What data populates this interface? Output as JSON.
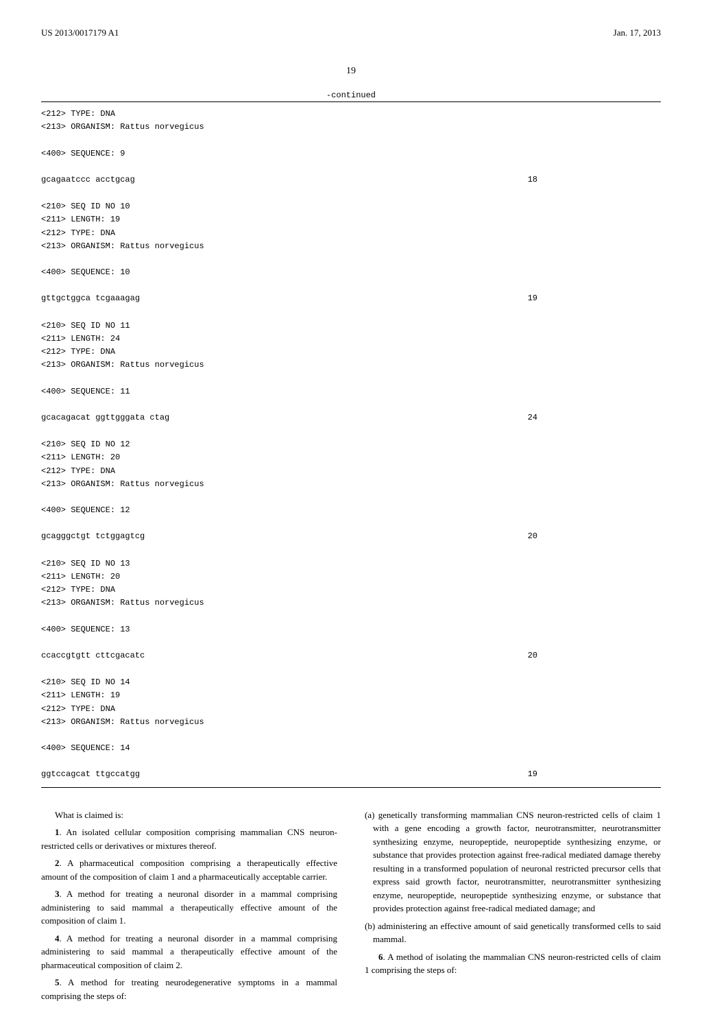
{
  "header": {
    "pub_number": "US 2013/0017179 A1",
    "pub_date": "Jan. 17, 2013"
  },
  "page_number": "19",
  "continued_label": "-continued",
  "sequences": [
    {
      "meta": [
        "<212> TYPE: DNA",
        "<213> ORGANISM: Rattus norvegicus"
      ],
      "seq_label": "<400> SEQUENCE: 9",
      "seq_data": "gcagaatccc acctgcag",
      "seq_len": "18"
    },
    {
      "meta": [
        "<210> SEQ ID NO 10",
        "<211> LENGTH: 19",
        "<212> TYPE: DNA",
        "<213> ORGANISM: Rattus norvegicus"
      ],
      "seq_label": "<400> SEQUENCE: 10",
      "seq_data": "gttgctggca tcgaaagag",
      "seq_len": "19"
    },
    {
      "meta": [
        "<210> SEQ ID NO 11",
        "<211> LENGTH: 24",
        "<212> TYPE: DNA",
        "<213> ORGANISM: Rattus norvegicus"
      ],
      "seq_label": "<400> SEQUENCE: 11",
      "seq_data": "gcacagacat ggttgggata ctag",
      "seq_len": "24"
    },
    {
      "meta": [
        "<210> SEQ ID NO 12",
        "<211> LENGTH: 20",
        "<212> TYPE: DNA",
        "<213> ORGANISM: Rattus norvegicus"
      ],
      "seq_label": "<400> SEQUENCE: 12",
      "seq_data": "gcagggctgt tctggagtcg",
      "seq_len": "20"
    },
    {
      "meta": [
        "<210> SEQ ID NO 13",
        "<211> LENGTH: 20",
        "<212> TYPE: DNA",
        "<213> ORGANISM: Rattus norvegicus"
      ],
      "seq_label": "<400> SEQUENCE: 13",
      "seq_data": "ccaccgtgtt cttcgacatc",
      "seq_len": "20"
    },
    {
      "meta": [
        "<210> SEQ ID NO 14",
        "<211> LENGTH: 19",
        "<212> TYPE: DNA",
        "<213> ORGANISM: Rattus norvegicus"
      ],
      "seq_label": "<400> SEQUENCE: 14",
      "seq_data": "ggtccagcat ttgccatgg",
      "seq_len": "19"
    }
  ],
  "claims": {
    "intro": "What is claimed is:",
    "left_col": [
      {
        "num": "1",
        "text": ". An isolated cellular composition comprising mammalian CNS neuron-restricted cells or derivatives or mixtures thereof."
      },
      {
        "num": "2",
        "text": ". A pharmaceutical composition comprising a therapeutically effective amount of the composition of claim 1 and a pharmaceutically acceptable carrier."
      },
      {
        "num": "3",
        "text": ". A method for treating a neuronal disorder in a mammal comprising administering to said mammal a therapeutically effective amount of the composition of claim 1."
      },
      {
        "num": "4",
        "text": ". A method for treating a neuronal disorder in a mammal comprising administering to said mammal a therapeutically effective amount of the pharmaceutical composition of claim 2."
      },
      {
        "num": "5",
        "text": ". A method for treating neurodegenerative symptoms in a mammal comprising the steps of:"
      }
    ],
    "right_col_items": [
      {
        "label": "(a)",
        "text": "genetically transforming mammalian CNS neuron-restricted cells of claim 1 with a gene encoding a growth factor, neurotransmitter, neurotransmitter synthesizing enzyme, neuropeptide, neuropeptide synthesizing enzyme, or substance that provides protection against free-radical mediated damage thereby resulting in a transformed population of neuronal restricted precursor cells that express said growth factor, neurotransmitter, neurotransmitter synthesizing enzyme, neuropeptide, neuropeptide synthesizing enzyme, or substance that provides protection against free-radical mediated damage; and"
      },
      {
        "label": "(b)",
        "text": "administering an effective amount of said genetically transformed cells to said mammal."
      }
    ],
    "right_col_claim": {
      "num": "6",
      "text": ". A method of isolating the mammalian CNS neuron-restricted cells of claim 1 comprising the steps of:"
    }
  }
}
